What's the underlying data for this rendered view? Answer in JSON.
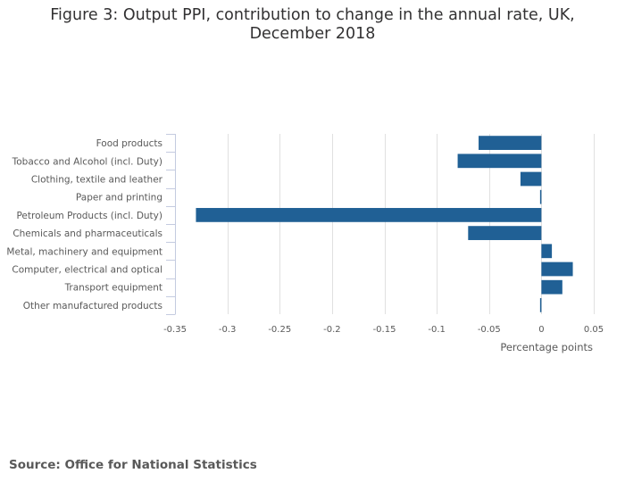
{
  "title_lines": [
    "Figure 3: Output PPI, contribution to change in the annual rate, UK,",
    "December 2018"
  ],
  "source": "Source: Office for National Statistics",
  "colors": {
    "bar": "#206095",
    "grid": "#e0e0e0",
    "axis": "#c4cbe0",
    "text": "#595959"
  },
  "chart_data": {
    "type": "bar",
    "orientation": "horizontal",
    "title": "Figure 3: Output PPI, contribution to change in the annual rate, UK, December 2018",
    "xlabel": "Percentage points",
    "ylabel": "",
    "categories": [
      "Food products",
      "Tobacco and Alcohol (incl. Duty)",
      "Clothing, textile and leather",
      "Paper and printing",
      "Petroleum Products (incl. Duty)",
      "Chemicals and pharmaceuticals",
      "Metal, machinery and equipment",
      "Computer, electrical and optical",
      "Transport equipment",
      "Other manufactured products"
    ],
    "values": [
      -0.06,
      -0.08,
      -0.02,
      -0.001,
      -0.33,
      -0.07,
      0.01,
      0.03,
      0.02,
      -0.001
    ],
    "xlim": [
      -0.35,
      0.05
    ],
    "xticks": [
      -0.35,
      -0.3,
      -0.25,
      -0.2,
      -0.15,
      -0.1,
      -0.05,
      0,
      0.05
    ],
    "xtick_labels": [
      "-0.35",
      "-0.3",
      "-0.25",
      "-0.2",
      "-0.15",
      "-0.1",
      "-0.05",
      "0",
      "0.05"
    ],
    "grid": true,
    "legend": "none"
  }
}
